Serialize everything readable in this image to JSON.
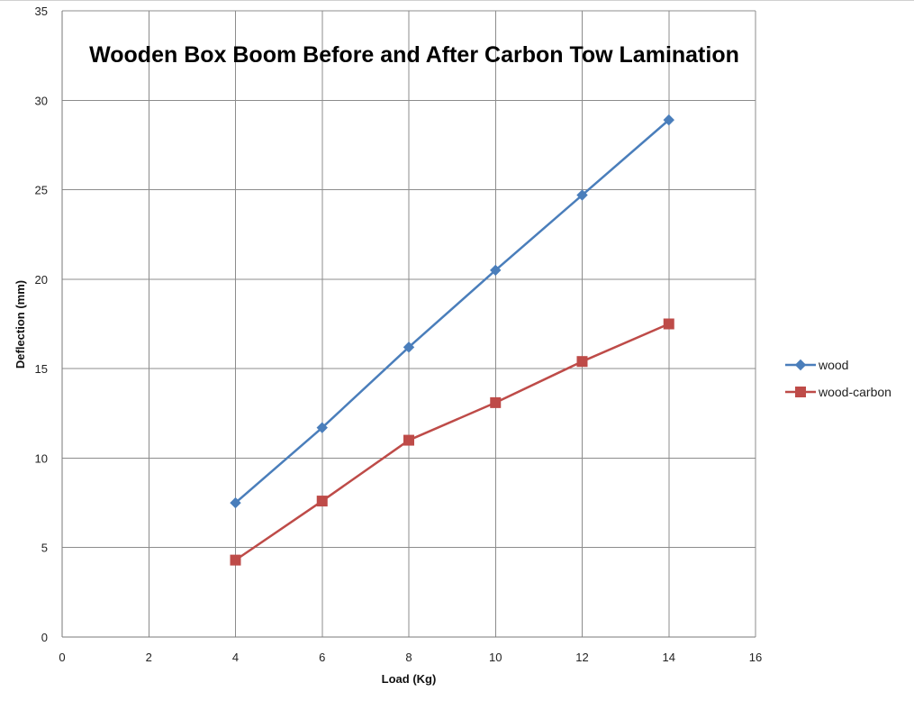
{
  "chart_data": {
    "type": "line",
    "title": "Wooden Box Boom Before and After Carbon Tow Lamination",
    "xlabel": "Load (Kg)",
    "ylabel": "Deflection (mm)",
    "xlim": [
      0,
      16
    ],
    "ylim": [
      0,
      35
    ],
    "x_ticks": [
      0,
      2,
      4,
      6,
      8,
      10,
      12,
      14,
      16
    ],
    "y_ticks": [
      0,
      5,
      10,
      15,
      20,
      25,
      30,
      35
    ],
    "grid": true,
    "legend_position": "right",
    "x": [
      4,
      6,
      8,
      10,
      12,
      14
    ],
    "series": [
      {
        "name": "wood",
        "values": [
          7.5,
          11.7,
          16.2,
          20.5,
          24.7,
          28.9
        ],
        "color": "#4A7EBB",
        "marker": "diamond"
      },
      {
        "name": "wood-carbon",
        "values": [
          4.3,
          7.6,
          11.0,
          13.1,
          15.4,
          17.5
        ],
        "color": "#BE4B48",
        "marker": "square"
      }
    ]
  }
}
